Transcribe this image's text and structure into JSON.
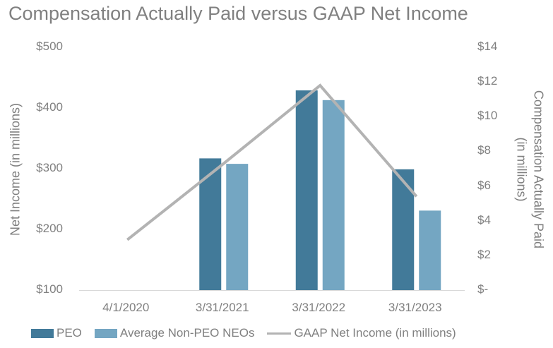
{
  "chart_data": {
    "type": "bar+line",
    "title": "Compensation Actually Paid versus GAAP Net Income",
    "categories": [
      "4/1/2020",
      "3/31/2021",
      "3/31/2022",
      "3/31/2023"
    ],
    "y_left": {
      "label": "Net Income (in millions)",
      "range": [
        100,
        500
      ],
      "ticks": [
        "$500",
        "$400",
        "$300",
        "$200",
        "$100"
      ],
      "tick_values": [
        500,
        400,
        300,
        200,
        100
      ]
    },
    "y_right": {
      "label_line1": "Compensation Actually Paid",
      "label_line2": "(in millions)",
      "range": [
        0,
        14
      ],
      "ticks": [
        "$14",
        "$12",
        "$10",
        "$8",
        "$6",
        "$4",
        "$2",
        "$-"
      ],
      "tick_values": [
        14,
        12,
        10,
        8,
        6,
        4,
        2,
        0
      ]
    },
    "series": [
      {
        "name": "PEO",
        "kind": "bar",
        "axis": "left",
        "color": "#427a99",
        "values": [
          null,
          317,
          429,
          299
        ]
      },
      {
        "name": "Average Non-PEO NEOs",
        "kind": "bar",
        "axis": "left",
        "color": "#74a6c2",
        "values": [
          null,
          308,
          413,
          231
        ]
      },
      {
        "name": "GAAP Net Income (in millions)",
        "kind": "line",
        "axis": "right",
        "color": "#b3b3b3",
        "values": [
          2.9,
          7.3,
          11.8,
          5.4
        ]
      }
    ],
    "legend_position": "bottom",
    "grid": false
  }
}
